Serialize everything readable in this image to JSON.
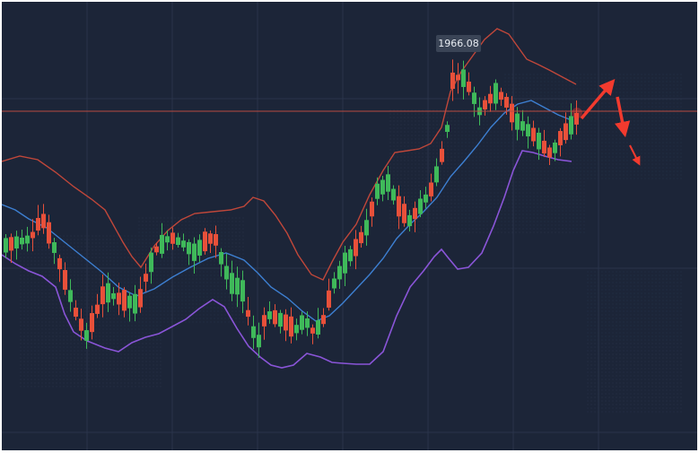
{
  "chart_data": {
    "type": "candlestick",
    "title": "",
    "xlabel": "",
    "ylabel": "",
    "theme": {
      "background": "#1c2538",
      "grid": "#2a344a",
      "up_candle": "#3fb95a",
      "down_candle": "#e8503a",
      "upper_band": "#c0473a",
      "middle_band": "#3d7fd1",
      "lower_band": "#8a55d8",
      "price_line": "#b94a40",
      "arrows": "#f23a2e"
    },
    "grid": true,
    "price_label": "1966.08",
    "series": [
      {
        "type": "bollinger-upper"
      },
      {
        "type": "bollinger-middle"
      },
      {
        "type": "bollinger-lower"
      },
      {
        "type": "candles"
      }
    ],
    "annotations": [
      {
        "type": "arrow",
        "direction": "up-right"
      },
      {
        "type": "arrow",
        "direction": "down"
      },
      {
        "type": "arrow",
        "direction": "down-right"
      }
    ]
  }
}
